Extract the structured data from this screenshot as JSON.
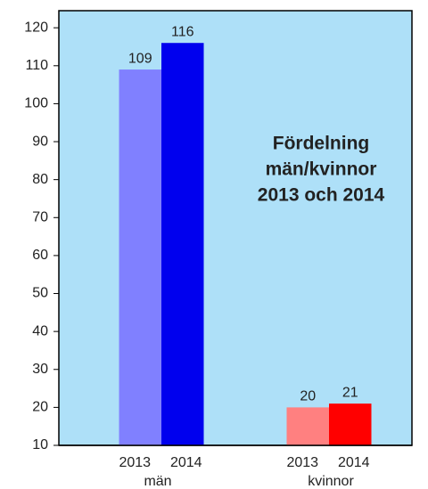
{
  "chart_data": {
    "type": "bar",
    "title": [
      "Fördelning",
      "män/kvinnor",
      "2013 och 2014"
    ],
    "categories": [
      "män",
      "kvinnor"
    ],
    "series": [
      {
        "name": "2013",
        "colors": [
          "#8080ff",
          "#ff8080"
        ],
        "values": [
          109,
          20
        ]
      },
      {
        "name": "2014",
        "colors": [
          "#0000ee",
          "#ff0000"
        ],
        "values": [
          116,
          21
        ]
      }
    ],
    "ylim": [
      10,
      124.5
    ],
    "yticks": [
      10,
      20,
      30,
      40,
      50,
      60,
      70,
      80,
      90,
      100,
      110,
      120
    ],
    "background": "#aee0f8"
  }
}
